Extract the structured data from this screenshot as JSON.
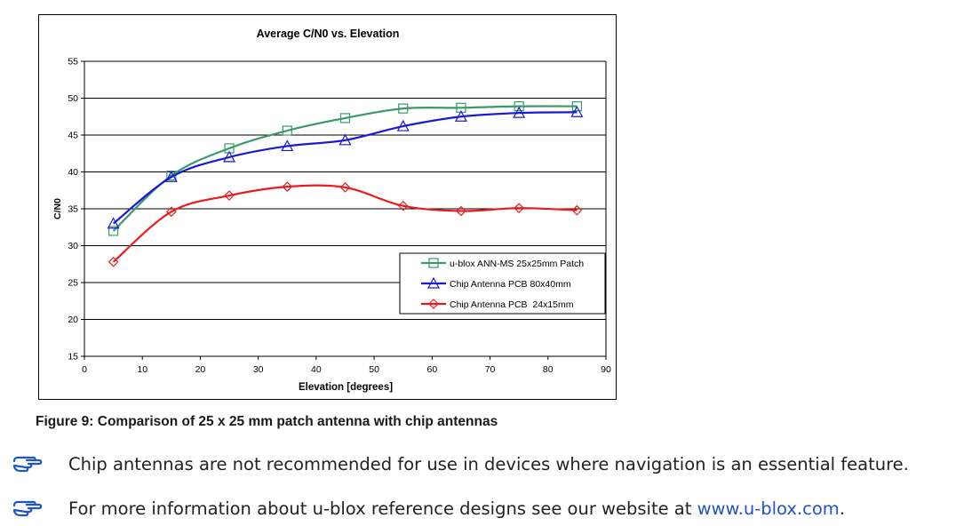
{
  "chart_data": {
    "type": "line",
    "title": "Average C/N0 vs. Elevation",
    "xlabel": "Elevation [degrees]",
    "ylabel": "C/N0",
    "xlim": [
      0,
      90
    ],
    "ylim": [
      15,
      55
    ],
    "xticks": [
      0,
      10,
      20,
      30,
      40,
      50,
      60,
      70,
      80,
      90
    ],
    "yticks": [
      15,
      20,
      25,
      30,
      35,
      40,
      45,
      50,
      55
    ],
    "grid": "horizontal",
    "legend_position": "lower-right",
    "x": [
      5,
      15,
      25,
      35,
      45,
      55,
      65,
      75,
      85
    ],
    "series": [
      {
        "name": "u-blox ANN-MS 25x25mm Patch",
        "color": "#3a9a6a",
        "marker": "square",
        "values": [
          32,
          39.5,
          43.2,
          45.6,
          47.3,
          48.6,
          48.7,
          48.9,
          48.9
        ]
      },
      {
        "name": "Chip Antenna PCB 80x40mm",
        "color": "#1a1ad6",
        "marker": "triangle",
        "values": [
          33,
          39.3,
          42,
          43.5,
          44.3,
          46.2,
          47.5,
          48,
          48.1
        ]
      },
      {
        "name": "Chip Antenna PCB  24x15mm",
        "color": "#e81c1c",
        "marker": "diamond",
        "values": [
          27.8,
          34.6,
          36.8,
          38,
          37.9,
          35.4,
          34.7,
          35.1,
          34.8
        ]
      }
    ]
  },
  "caption": "Figure 9: Comparison of 25 x 25 mm patch antenna with chip antennas",
  "notes": [
    {
      "text": "Chip antennas are not recommended for use in devices where navigation is an essential feature.",
      "icon": "pointing-hand-icon"
    },
    {
      "text": "For more information about u-blox reference designs see our website at ",
      "link": "www.u-blox.com",
      "suffix": ".",
      "icon": "pointing-hand-icon"
    }
  ]
}
